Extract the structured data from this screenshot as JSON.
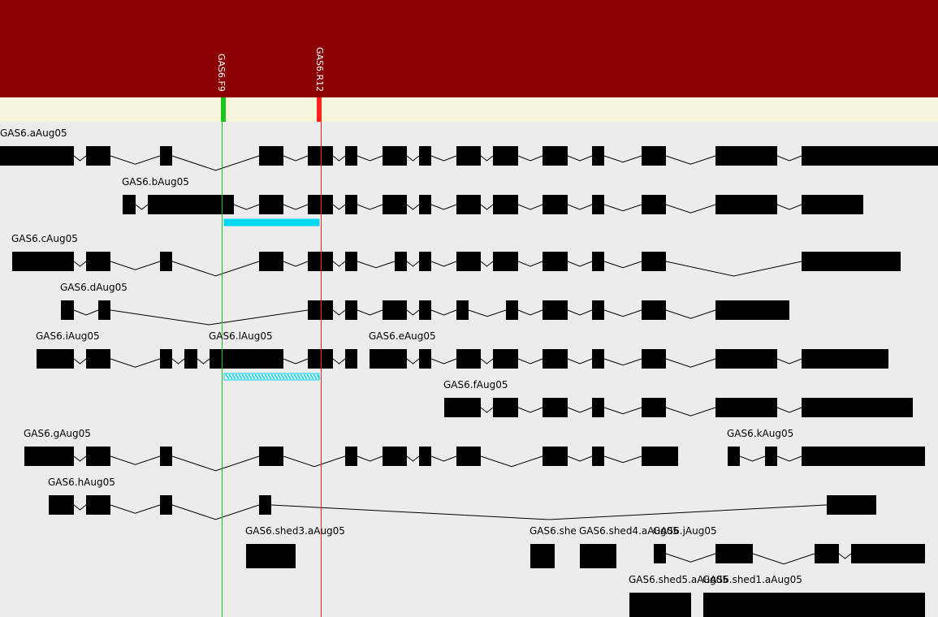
{
  "colors": {
    "header": "#8b0000",
    "band": "#f5f5dc",
    "background": "#ececec",
    "exon": "#000000",
    "forward_primer": "#1fc41f",
    "reverse_primer": "#ff2020",
    "amplicon": "#00d8f0"
  },
  "primers": [
    {
      "name": "GAS6.F9",
      "direction": "forward"
    },
    {
      "name": "GAS6.R12",
      "direction": "reverse"
    }
  ],
  "transcripts": [
    {
      "name": "GAS6.aAug05"
    },
    {
      "name": "GAS6.bAug05"
    },
    {
      "name": "GAS6.cAug05"
    },
    {
      "name": "GAS6.dAug05"
    },
    {
      "name": "GAS6.iAug05"
    },
    {
      "name": "GAS6.lAug05"
    },
    {
      "name": "GAS6.eAug05"
    },
    {
      "name": "GAS6.fAug05"
    },
    {
      "name": "GAS6.gAug05"
    },
    {
      "name": "GAS6.kAug05"
    },
    {
      "name": "GAS6.hAug05"
    },
    {
      "name": "GAS6.shed3.aAug05"
    },
    {
      "name": "GAS6.she"
    },
    {
      "name": "GAS6.shed4.aAug05"
    },
    {
      "name": "GAS6.jAug05"
    },
    {
      "name": "GAS6.shed5.aAug05"
    },
    {
      "name": "GAS6.shed1.aAug05"
    }
  ]
}
